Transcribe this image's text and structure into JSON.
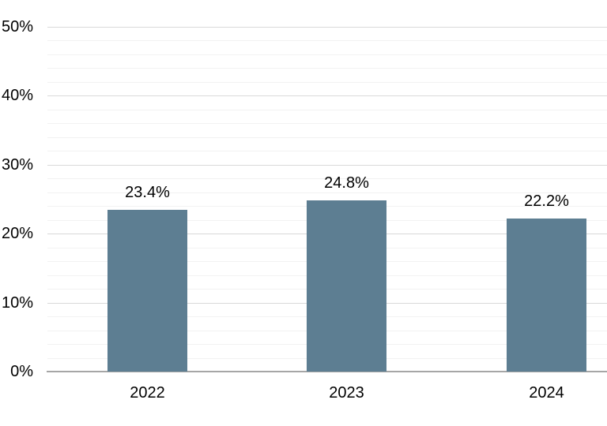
{
  "chart_data": {
    "type": "bar",
    "categories": [
      "2022",
      "2023",
      "2024"
    ],
    "values": [
      23.4,
      24.8,
      22.2
    ],
    "data_labels": [
      "23.4%",
      "24.8%",
      "22.2%"
    ],
    "title": "",
    "xlabel": "",
    "ylabel": "",
    "ylim": [
      0,
      50
    ],
    "ytick_values": [
      0,
      10,
      20,
      30,
      40,
      50
    ],
    "ytick_labels": [
      "0%",
      "10%",
      "20%",
      "30%",
      "40%",
      "50%"
    ],
    "minor_grid_step_pct": 2,
    "major_grid_step_pct": 10,
    "grid": "on",
    "legend": "none",
    "colors": {
      "bar": "#5d7e92",
      "major_gridline": "#d9d9d9",
      "minor_gridline": "#f2f2f2",
      "axis_line": "#a6a6a6",
      "label_text": "#000000",
      "background": "#ffffff"
    }
  }
}
